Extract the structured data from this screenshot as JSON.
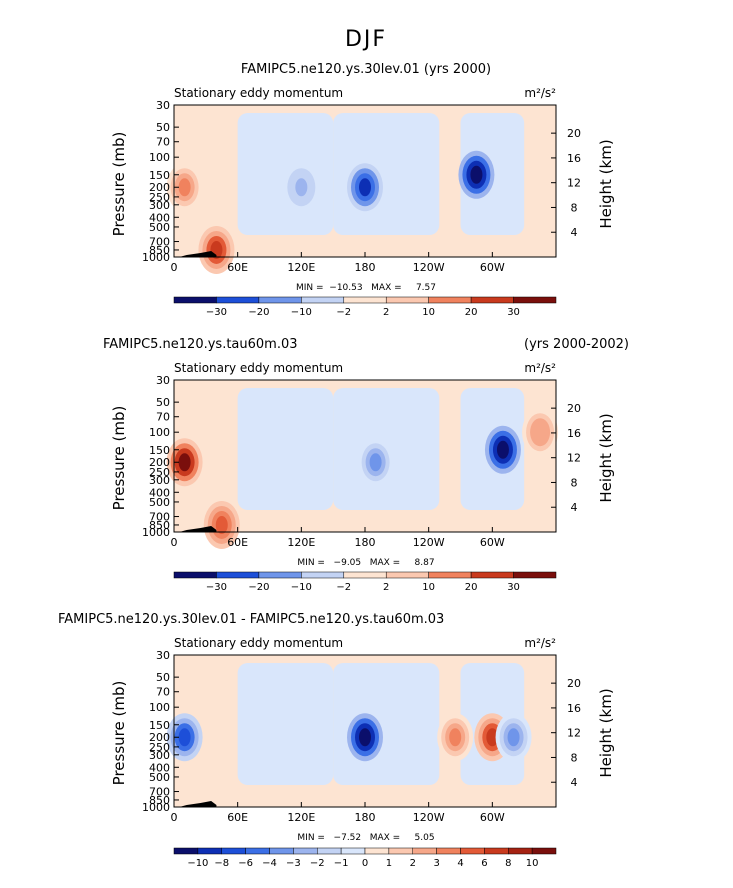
{
  "page": {
    "title": "DJF"
  },
  "palette": {
    "neg": [
      "#0b0f6b",
      "#0d2fb4",
      "#1d4fd8",
      "#3b6fe6",
      "#6f95ea",
      "#9cb4ee",
      "#c3d3f4",
      "#d9e6fb"
    ],
    "pos": [
      "#fde4d2",
      "#fbc8b0",
      "#f6a789",
      "#f0825e",
      "#e35a37",
      "#c93a1e",
      "#a52212",
      "#7a0f0c"
    ],
    "background": "#ffffff"
  },
  "chart_data": [
    {
      "type": "heatmap",
      "title": "FAMIPC5.ne120.ys.30lev.01 (yrs 2000)",
      "title_right": "",
      "left_string": "Stationary eddy momentum",
      "units": "m²/s²",
      "ylabel": "Pressure (mb)",
      "ylabel_right": "Height (km)",
      "y_ticks": [
        "30",
        "50",
        "70",
        "100",
        "150",
        "200",
        "250",
        "300",
        "400",
        "500",
        "700",
        "850",
        "1000"
      ],
      "y_ticks_right": [
        "20",
        "16",
        "12",
        "8",
        "4"
      ],
      "x_ticks": [
        "0",
        "60E",
        "120E",
        "180",
        "120W",
        "60W"
      ],
      "x_range": [
        0,
        360
      ],
      "min_max_label": "MIN =  −10.53   MAX =     7.57",
      "colorbar_labels": [
        "−30",
        "−20",
        "−10",
        "−2",
        "2",
        "10",
        "20",
        "30"
      ],
      "features": [
        {
          "lon": 180,
          "p": 200,
          "value": -8
        },
        {
          "lon": 285,
          "p": 150,
          "value": -10.5
        },
        {
          "lon": 10,
          "p": 200,
          "value": 4
        },
        {
          "lon": 120,
          "p": 200,
          "value": -3
        },
        {
          "lon": 40,
          "p": 850,
          "value": 7.5
        }
      ]
    },
    {
      "type": "heatmap",
      "title": "FAMIPC5.ne120.ys.tau60m.03",
      "title_right": "(yrs 2000-2002)",
      "left_string": "Stationary eddy momentum",
      "units": "m²/s²",
      "ylabel": "Pressure (mb)",
      "ylabel_right": "Height (km)",
      "y_ticks": [
        "30",
        "50",
        "70",
        "100",
        "150",
        "200",
        "250",
        "300",
        "400",
        "500",
        "700",
        "850",
        "1000"
      ],
      "y_ticks_right": [
        "20",
        "16",
        "12",
        "8",
        "4"
      ],
      "x_ticks": [
        "0",
        "60E",
        "120E",
        "180",
        "120W",
        "60W"
      ],
      "x_range": [
        0,
        360
      ],
      "min_max_label": "MIN =   −9.05   MAX =     8.87",
      "colorbar_labels": [
        "−30",
        "−20",
        "−10",
        "−2",
        "2",
        "10",
        "20",
        "30"
      ],
      "features": [
        {
          "lon": 190,
          "p": 200,
          "value": -4
        },
        {
          "lon": 310,
          "p": 150,
          "value": -9
        },
        {
          "lon": 10,
          "p": 200,
          "value": 8.8
        },
        {
          "lon": 345,
          "p": 100,
          "value": 3
        },
        {
          "lon": 45,
          "p": 850,
          "value": 5
        }
      ]
    },
    {
      "type": "heatmap",
      "title": "FAMIPC5.ne120.ys.30lev.01 - FAMIPC5.ne120.ys.tau60m.03",
      "title_right": "",
      "left_string": "Stationary eddy momentum",
      "units": "m²/s²",
      "ylabel": "Pressure (mb)",
      "ylabel_right": "Height (km)",
      "y_ticks": [
        "30",
        "50",
        "70",
        "100",
        "150",
        "200",
        "250",
        "300",
        "400",
        "500",
        "700",
        "850",
        "1000"
      ],
      "y_ticks_right": [
        "20",
        "16",
        "12",
        "8",
        "4"
      ],
      "x_ticks": [
        "0",
        "60E",
        "120E",
        "180",
        "120W",
        "60W"
      ],
      "x_range": [
        0,
        360
      ],
      "min_max_label": "MIN =   −7.52   MAX =     5.05",
      "colorbar_labels": [
        "−10",
        "−8",
        "−6",
        "−4",
        "−3",
        "−2",
        "−1",
        "0",
        "1",
        "2",
        "3",
        "4",
        "6",
        "8",
        "10"
      ],
      "features": [
        {
          "lon": 180,
          "p": 200,
          "value": -7.5
        },
        {
          "lon": 10,
          "p": 200,
          "value": -5
        },
        {
          "lon": 300,
          "p": 200,
          "value": 5
        },
        {
          "lon": 265,
          "p": 200,
          "value": 3.5
        },
        {
          "lon": 320,
          "p": 200,
          "value": -3
        }
      ]
    }
  ]
}
